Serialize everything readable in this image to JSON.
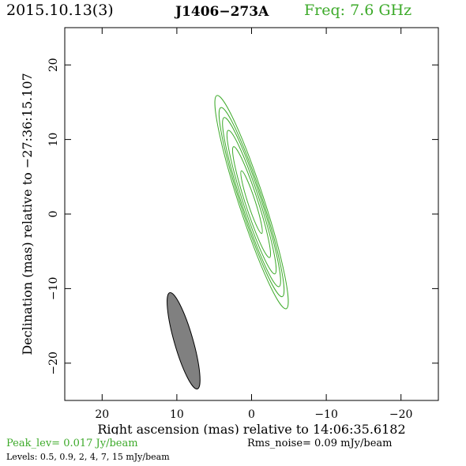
{
  "header": {
    "date": "2015.10.13(3)",
    "source": "J1406−273A",
    "freq": "Freq: 7.6 GHz"
  },
  "footer": {
    "peak": "Peak_lev=  0.017 Jy/beam",
    "rms": "Rms_noise= 0.09 mJy/beam",
    "levels": "Levels: 0.5, 0.9,   2,   4,   7,  15 mJy/beam"
  },
  "colors": {
    "contour": "#3daa2a",
    "beam": "#808080",
    "freq_text": "#3daa2a"
  },
  "chart_data": {
    "type": "contour",
    "xlabel": "Right ascension (mas) relative to 14:06:35.6182",
    "ylabel": "Declination (mas) relative to −27:36:15.107",
    "xlim": [
      25,
      -25
    ],
    "ylim": [
      -25,
      25
    ],
    "xticks": [
      20,
      10,
      0,
      -10,
      -20
    ],
    "yticks": [
      20,
      10,
      0,
      -10,
      -20
    ],
    "xtick_labels": [
      "20",
      "10",
      "0",
      "−10",
      "−20"
    ],
    "ytick_labels": [
      "20",
      "10",
      "0",
      "−10",
      "−20"
    ],
    "contour_levels_mJy": [
      0.5,
      0.9,
      2,
      4,
      7,
      15
    ],
    "contour_center": [
      0,
      1.6
    ],
    "contour_position_angle_deg": -18,
    "contours": [
      {
        "level": 0.5,
        "major": 30.0,
        "minor": 3.4
      },
      {
        "level": 0.9,
        "major": 26.6,
        "minor": 3.0
      },
      {
        "level": 2,
        "major": 23.8,
        "minor": 2.65
      },
      {
        "level": 4,
        "major": 20.2,
        "minor": 2.2
      },
      {
        "level": 7,
        "major": 15.6,
        "minor": 1.7
      },
      {
        "level": 15,
        "major": 8.8,
        "minor": 1.0
      }
    ],
    "beam": {
      "center": [
        9.1,
        -17.0
      ],
      "major": 13.4,
      "minor": 2.5,
      "pa_deg": -16
    }
  }
}
